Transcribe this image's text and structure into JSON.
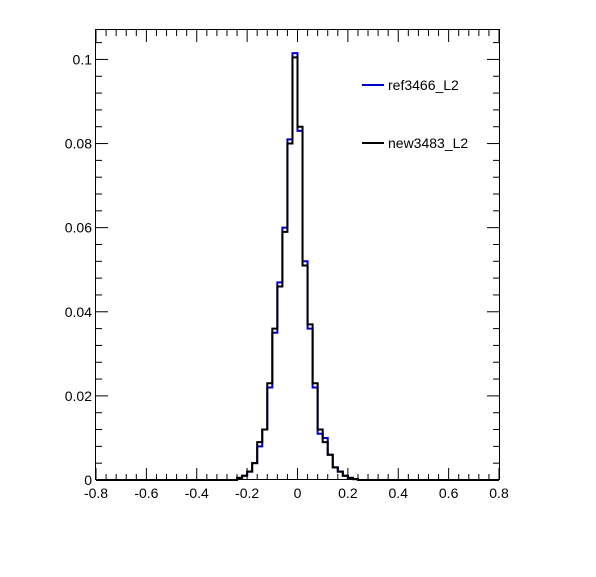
{
  "chart_data": {
    "type": "line",
    "title": "",
    "xlabel": "",
    "ylabel": "",
    "xlim": [
      -0.8,
      0.8
    ],
    "ylim": [
      0,
      0.107
    ],
    "grid": false,
    "legend_position": "top-right",
    "x_ticks": [
      "-0.8",
      "-0.6",
      "-0.4",
      "-0.2",
      "0",
      "0.2",
      "0.4",
      "0.6",
      "0.8"
    ],
    "y_ticks": [
      "0",
      "0.02",
      "0.04",
      "0.06",
      "0.08",
      "0.1"
    ],
    "x_tick_values": [
      -0.8,
      -0.6,
      -0.4,
      -0.2,
      0,
      0.2,
      0.4,
      0.6,
      0.8
    ],
    "y_tick_values": [
      0,
      0.02,
      0.04,
      0.06,
      0.08,
      0.1
    ],
    "bin_edges": [
      -0.24,
      -0.22,
      -0.2,
      -0.18,
      -0.16,
      -0.14,
      -0.12,
      -0.1,
      -0.08,
      -0.06,
      -0.04,
      -0.02,
      0,
      0.02,
      0.04,
      0.06,
      0.08,
      0.1,
      0.12,
      0.14,
      0.16,
      0.18,
      0.2,
      0.22,
      0.24
    ],
    "series": [
      {
        "name": "ref3466_L2",
        "color": "#0000cc",
        "values": [
          0.0005,
          0.001,
          0.002,
          0.004,
          0.008,
          0.012,
          0.022,
          0.035,
          0.047,
          0.06,
          0.081,
          0.1015,
          0.083,
          0.052,
          0.036,
          0.022,
          0.011,
          0.01,
          0.006,
          0.003,
          0.002,
          0.001,
          0.0005,
          0.0002
        ]
      },
      {
        "name": "new3483_L2",
        "color": "#000000",
        "values": [
          0.0005,
          0.001,
          0.002,
          0.004,
          0.009,
          0.012,
          0.023,
          0.036,
          0.046,
          0.059,
          0.08,
          0.1005,
          0.084,
          0.051,
          0.037,
          0.023,
          0.012,
          0.009,
          0.006,
          0.003,
          0.002,
          0.001,
          0.0005,
          0.0002
        ]
      }
    ]
  }
}
